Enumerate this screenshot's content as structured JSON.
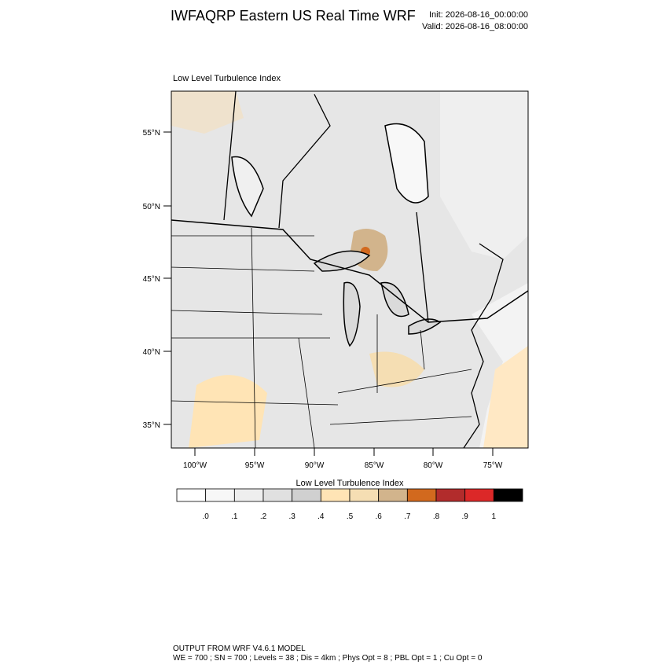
{
  "header": {
    "title": "IWFAQRP Eastern US Real Time WRF",
    "init": "Init: 2026-08-16_00:00:00",
    "valid": "Valid: 2026-08-16_08:00:00"
  },
  "map": {
    "field_label": "Low Level Turbulence Index",
    "lat_labels": [
      "55°N",
      "50°N",
      "45°N",
      "40°N",
      "35°N"
    ],
    "lon_labels": [
      "100°W",
      "95°W",
      "90°W",
      "85°W",
      "80°W",
      "75°W"
    ]
  },
  "colorbar": {
    "title": "Low Level Turbulence Index",
    "colors": [
      "#ffffff",
      "#f7f7f7",
      "#eeeeee",
      "#e0e0e0",
      "#d0d0d0",
      "#ffe4b5",
      "#f5deb3",
      "#d2b48c",
      "#d2691e",
      "#b22c2c",
      "#dc2828",
      "#000000"
    ],
    "labels": [
      ".0",
      ".1",
      ".2",
      ".3",
      ".4",
      ".5",
      ".6",
      ".7",
      ".8",
      ".9",
      "1"
    ]
  },
  "footer": {
    "line1": "OUTPUT FROM WRF V4.6.1 MODEL",
    "line2": "WE = 700 ; SN = 700 ; Levels = 38 ; Dis = 4km ; Phys Opt = 8 ; PBL Opt = 1 ; Cu Opt = 0"
  }
}
